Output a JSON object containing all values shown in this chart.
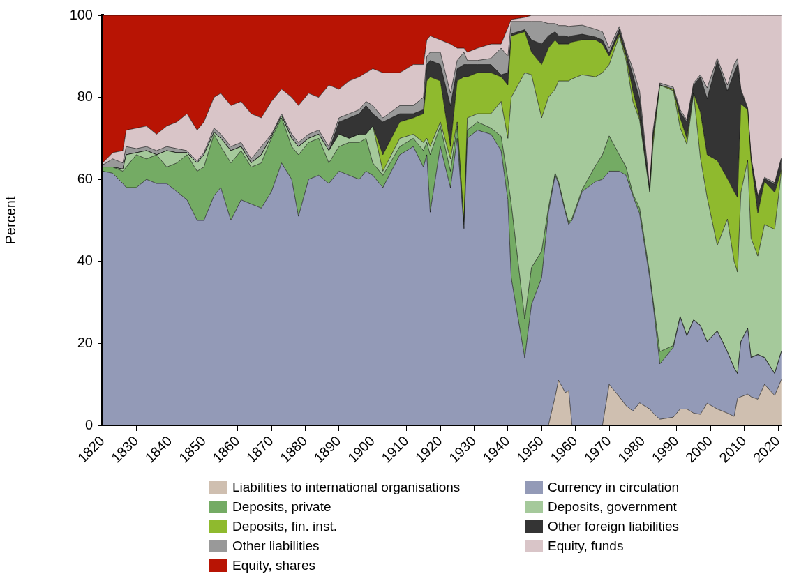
{
  "chart_data": {
    "type": "area",
    "ylabel": "Percent",
    "stacked": true,
    "grid": false,
    "legend": "bottom",
    "xlim": [
      1820,
      2021
    ],
    "xticks": [
      1820,
      1830,
      1840,
      1850,
      1860,
      1870,
      1880,
      1890,
      1900,
      1910,
      1920,
      1930,
      1940,
      1950,
      1960,
      1970,
      1980,
      1990,
      2000,
      2010,
      2020
    ],
    "ylim": [
      0,
      100
    ],
    "yticks": [
      0,
      20,
      40,
      60,
      80,
      100
    ],
    "x": [
      1820,
      1823,
      1826,
      1827,
      1830,
      1833,
      1836,
      1839,
      1842,
      1845,
      1848,
      1850,
      1853,
      1855,
      1858,
      1861,
      1864,
      1867,
      1870,
      1873,
      1876,
      1878,
      1881,
      1884,
      1887,
      1890,
      1893,
      1896,
      1898,
      1900,
      1903,
      1908,
      1912,
      1915,
      1916,
      1917,
      1920,
      1923,
      1925,
      1927,
      1928,
      1931,
      1935,
      1938,
      1940,
      1941,
      1945,
      1947,
      1950,
      1952,
      1954,
      1955,
      1957,
      1958,
      1959,
      1962,
      1966,
      1968,
      1970,
      1973,
      1975,
      1977,
      1979,
      1982,
      1983,
      1985,
      1989,
      1991,
      1993,
      1995,
      1997,
      1999,
      2002,
      2005,
      2007,
      2008,
      2009,
      2011,
      2012,
      2014,
      2016,
      2019,
      2021
    ],
    "series": [
      {
        "name": "Liabilities to international organisations",
        "color": "#cfbfb0",
        "values": [
          0,
          0,
          0,
          0,
          0,
          0,
          0,
          0,
          0,
          0,
          0,
          0,
          0,
          0,
          0,
          0,
          0,
          0,
          0,
          0,
          0,
          0,
          0,
          0,
          0,
          0,
          0,
          0,
          0,
          0,
          0,
          0,
          0,
          0,
          0,
          0,
          0,
          0,
          0,
          0,
          0,
          0,
          0,
          0,
          0,
          0,
          0,
          0,
          0,
          0,
          7,
          11,
          8,
          8.5,
          0,
          0,
          0,
          0,
          10,
          7,
          4.8,
          3.5,
          5.5,
          4,
          3,
          1.5,
          2,
          4,
          4,
          3,
          2.7,
          5.4,
          4,
          3,
          2.2,
          6.6,
          7,
          7.6,
          7,
          6.4,
          10,
          7.3,
          11.2
        ]
      },
      {
        "name": "Currency in circulation",
        "color": "#939ab7",
        "values": [
          62,
          61.5,
          59,
          58,
          58,
          60,
          59,
          59,
          57,
          55,
          50,
          50,
          56,
          58,
          50,
          55,
          54,
          53,
          57,
          64,
          60,
          51,
          60,
          61,
          59,
          62,
          61,
          60,
          62,
          61,
          58,
          66,
          68,
          63,
          66,
          52,
          68,
          58,
          70,
          48,
          70,
          72,
          71,
          67,
          55,
          36,
          16.5,
          29.5,
          36,
          52,
          54,
          48,
          44,
          40.5,
          50,
          57,
          59.5,
          60,
          52,
          55,
          56.2,
          52.5,
          46.2,
          32,
          26.6,
          13.5,
          17,
          22.4,
          17.8,
          22.7,
          21.6,
          15,
          19,
          14.9,
          11.8,
          6,
          13.4,
          16,
          9.5,
          10.8,
          6.5,
          5.3,
          6.8
        ]
      },
      {
        "name": "Deposits, private",
        "color": "#74ab64",
        "values": [
          1,
          1.5,
          3,
          5,
          8,
          5,
          7,
          4,
          7,
          11,
          12,
          13,
          15,
          10,
          14,
          12,
          9,
          11,
          13,
          11,
          8,
          15,
          9,
          9,
          5,
          6,
          8,
          9,
          8,
          3,
          3,
          2,
          2,
          4,
          3,
          14,
          5,
          4,
          3,
          1,
          2,
          2,
          1.5,
          3.5,
          5,
          18,
          9.5,
          9,
          6.5,
          1,
          0.5,
          0.5,
          0.5,
          0.5,
          0.5,
          0.5,
          3.9,
          6,
          8.6,
          4,
          2,
          0.5,
          1.3,
          1,
          0.9,
          3,
          0.5,
          0.2,
          0.2,
          0.1,
          0.1,
          0.1,
          0.1,
          0.1,
          0.1,
          0.1,
          0.1,
          0.1,
          0.1,
          0.1,
          0.1,
          0.1,
          0.1
        ]
      },
      {
        "name": "Deposits, government",
        "color": "#a5c99b",
        "values": [
          0,
          0,
          0.5,
          3,
          0.5,
          2,
          0,
          4,
          2.5,
          0.5,
          2,
          3,
          0.5,
          2,
          3,
          1,
          1,
          2,
          0.5,
          0.5,
          2,
          2,
          1,
          1,
          3,
          3,
          1,
          2,
          1,
          9,
          1,
          2,
          1,
          2,
          1,
          2,
          1,
          3,
          1,
          0.5,
          3,
          2,
          3.5,
          8.5,
          10,
          26,
          60,
          47,
          32.5,
          27,
          20.5,
          24.5,
          31.5,
          34.5,
          34,
          28,
          21.6,
          20,
          17.4,
          29,
          26,
          22.5,
          21.5,
          19.8,
          38,
          65,
          62.1,
          46,
          46.5,
          55.2,
          40.9,
          35.1,
          20.8,
          32.3,
          25.9,
          24.7,
          36.3,
          40.9,
          29.1,
          24,
          32.4,
          35.1,
          43.9
        ]
      },
      {
        "name": "Deposits, fin. inst.",
        "color": "#8fba2e",
        "values": [
          0,
          0,
          0,
          0,
          0,
          0,
          0,
          0,
          0,
          0,
          0,
          0,
          0,
          0,
          0,
          0,
          0,
          0,
          0,
          0,
          0,
          0,
          0,
          0,
          0,
          0,
          0,
          0,
          0,
          0,
          4,
          4,
          4,
          7,
          14,
          17,
          10,
          3,
          10,
          35.5,
          10,
          10,
          10,
          6,
          13,
          15,
          10,
          5.5,
          13,
          12,
          12,
          9,
          9,
          9,
          9,
          8.5,
          9,
          7,
          2,
          0.5,
          1,
          2.6,
          0.5,
          0.2,
          1.5,
          0,
          0.4,
          2.4,
          1.5,
          0,
          11.1,
          10.4,
          20.7,
          9.9,
          17,
          18.2,
          21.6,
          12.4,
          18.9,
          10.4,
          10.5,
          9,
          0.3
        ]
      },
      {
        "name": "Other foreign liabilities",
        "color": "#343434",
        "values": [
          0,
          0,
          0,
          0,
          0,
          0,
          0,
          0,
          0,
          0,
          0,
          0,
          0,
          0,
          0,
          0,
          0,
          0,
          0,
          0,
          0,
          0,
          0,
          0,
          0,
          3,
          5,
          5,
          7,
          3,
          8,
          2,
          1,
          1,
          4,
          4,
          4,
          10,
          3,
          3,
          3,
          2,
          2,
          0.5,
          3,
          0.5,
          0.5,
          3,
          5,
          3,
          2,
          2,
          2,
          1.7,
          1.5,
          1.4,
          0.7,
          1,
          0.8,
          1.1,
          1,
          3.9,
          4.7,
          0,
          1,
          0,
          0,
          1.4,
          4,
          2,
          8.6,
          13.7,
          24.2,
          21.4,
          29,
          32.4,
          3.2,
          0.2,
          0.4,
          3.9,
          0.7,
          2,
          2.7
        ]
      },
      {
        "name": "Other liabilities",
        "color": "#999999",
        "values": [
          0.5,
          2,
          1.5,
          2,
          1,
          1,
          1,
          1,
          1,
          0.5,
          0.5,
          0.5,
          1,
          1,
          1,
          1,
          1,
          2,
          0.5,
          0.5,
          1,
          1,
          1,
          1,
          1,
          1,
          1,
          1,
          1,
          2,
          1,
          2,
          2,
          3,
          2,
          2,
          3,
          3,
          2,
          3,
          1,
          1,
          1.5,
          6.5,
          4,
          3,
          2,
          4.5,
          5.5,
          3,
          2,
          2.5,
          2.5,
          2.6,
          2.4,
          2.2,
          1.9,
          2,
          1.2,
          0.7,
          0.5,
          1.5,
          1.9,
          1,
          1,
          0.5,
          0.5,
          0.6,
          0.5,
          0.5,
          0.5,
          2.6,
          0.7,
          1.4,
          2,
          1.5,
          0.4,
          0.3,
          0.5,
          0.4,
          0.3,
          0.4,
          0.3
        ]
      },
      {
        "name": "Equity, funds",
        "color": "#d9c5c8",
        "values": [
          0.5,
          1.5,
          3,
          4,
          5,
          5,
          4,
          5,
          6.5,
          9,
          7.5,
          7.5,
          7.5,
          10,
          10,
          10,
          11,
          7,
          8,
          6,
          9,
          9,
          10,
          8,
          15,
          7,
          8,
          8,
          7,
          9,
          11,
          8,
          10,
          8,
          4,
          4,
          3,
          12,
          3,
          1,
          2,
          3,
          3.5,
          1,
          7,
          0.5,
          1,
          1.5,
          1.5,
          2,
          2,
          2.5,
          2.5,
          2.7,
          2.6,
          2.4,
          3.4,
          4,
          8,
          2.7,
          8.5,
          13,
          18.4,
          42,
          28,
          16.5,
          17.5,
          23,
          25.5,
          16.5,
          14.5,
          17.7,
          10.5,
          17,
          12,
          10.5,
          18,
          22.5,
          34.5,
          44,
          39.5,
          40.8,
          34.7
        ]
      },
      {
        "name": "Equity, shares",
        "color": "#b81404",
        "values": [
          36,
          33.5,
          33,
          28,
          27.5,
          27,
          29,
          27,
          26,
          24,
          28,
          26,
          20,
          19,
          22,
          21,
          24,
          25,
          21,
          18,
          20,
          22,
          19,
          20,
          17,
          18,
          16,
          15,
          14,
          13,
          14,
          14,
          12,
          12,
          6,
          5,
          6,
          7,
          8,
          8,
          9,
          8,
          7,
          7,
          3,
          1,
          0.5,
          0,
          0,
          0,
          0,
          0,
          0,
          0,
          0,
          0,
          0,
          0,
          0,
          0,
          0,
          0,
          0,
          0,
          0,
          0,
          0,
          0,
          0,
          0,
          0,
          0,
          0,
          0,
          0,
          0,
          0,
          0,
          0,
          0,
          0,
          0,
          0
        ]
      }
    ]
  }
}
